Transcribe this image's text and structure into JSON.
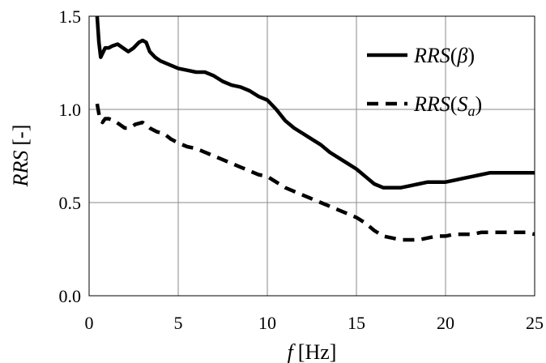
{
  "chart_data": {
    "type": "line",
    "xlabel": {
      "var": "f",
      "unit": "[Hz]"
    },
    "ylabel": {
      "var": "RRS",
      "unit": "[-]"
    },
    "xlim": [
      0,
      25
    ],
    "ylim": [
      0,
      1.5
    ],
    "xticks": [
      0,
      5,
      10,
      15,
      20,
      25
    ],
    "yticks": [
      0,
      0.5,
      1.0,
      1.5
    ],
    "xtick_labels": [
      "0",
      "5",
      "10",
      "15",
      "20",
      "25"
    ],
    "ytick_labels": [
      "0.0",
      "0.5",
      "1.0",
      "1.5"
    ],
    "grid": true,
    "legend_position": "top-right",
    "series": [
      {
        "name": "RRS(β)",
        "legend_base": "RRS",
        "legend_arg": "β",
        "legend_sub": "",
        "style": "solid",
        "color": "#000000",
        "x": [
          0.45,
          0.55,
          0.65,
          0.75,
          0.9,
          1.1,
          1.3,
          1.6,
          1.9,
          2.2,
          2.5,
          2.8,
          3.0,
          3.2,
          3.4,
          3.7,
          4.0,
          4.5,
          5.0,
          5.5,
          6.0,
          6.5,
          7.0,
          7.5,
          8.0,
          8.5,
          9.0,
          9.5,
          10.0,
          10.5,
          11.0,
          11.5,
          12.0,
          12.5,
          13.0,
          13.5,
          14.0,
          14.5,
          15.0,
          15.5,
          16.0,
          16.5,
          17.0,
          17.5,
          18.0,
          18.5,
          19.0,
          19.5,
          20.0,
          20.5,
          21.0,
          21.5,
          22.0,
          22.5,
          23.0,
          23.5,
          24.0,
          24.5,
          25.0
        ],
        "y": [
          1.5,
          1.36,
          1.28,
          1.3,
          1.33,
          1.33,
          1.34,
          1.35,
          1.33,
          1.31,
          1.33,
          1.36,
          1.37,
          1.36,
          1.31,
          1.28,
          1.26,
          1.24,
          1.22,
          1.21,
          1.2,
          1.2,
          1.18,
          1.15,
          1.13,
          1.12,
          1.1,
          1.07,
          1.05,
          1.0,
          0.94,
          0.9,
          0.87,
          0.84,
          0.81,
          0.77,
          0.74,
          0.71,
          0.68,
          0.64,
          0.6,
          0.58,
          0.58,
          0.58,
          0.59,
          0.6,
          0.61,
          0.61,
          0.61,
          0.62,
          0.63,
          0.64,
          0.65,
          0.66,
          0.66,
          0.66,
          0.66,
          0.66,
          0.66
        ]
      },
      {
        "name": "RRS(Sa)",
        "legend_base": "RRS",
        "legend_arg": "S",
        "legend_sub": "a",
        "style": "dashed",
        "color": "#000000",
        "x": [
          0.45,
          0.6,
          0.75,
          0.9,
          1.1,
          1.4,
          1.7,
          2.0,
          2.3,
          2.6,
          3.0,
          3.4,
          3.8,
          4.2,
          4.6,
          5.0,
          5.5,
          6.0,
          6.5,
          7.0,
          7.5,
          8.0,
          8.5,
          9.0,
          9.5,
          10.0,
          10.5,
          11.0,
          11.5,
          12.0,
          12.5,
          13.0,
          13.5,
          14.0,
          14.5,
          15.0,
          15.5,
          16.0,
          16.5,
          17.0,
          17.5,
          18.0,
          18.5,
          19.0,
          19.5,
          20.0,
          20.5,
          21.0,
          21.5,
          22.0,
          22.5,
          23.0,
          23.5,
          24.0,
          24.5,
          25.0
        ],
        "y": [
          1.03,
          0.95,
          0.93,
          0.95,
          0.95,
          0.94,
          0.92,
          0.9,
          0.9,
          0.92,
          0.93,
          0.9,
          0.88,
          0.87,
          0.84,
          0.82,
          0.8,
          0.79,
          0.77,
          0.75,
          0.73,
          0.71,
          0.69,
          0.67,
          0.65,
          0.64,
          0.61,
          0.58,
          0.56,
          0.54,
          0.52,
          0.5,
          0.48,
          0.46,
          0.44,
          0.42,
          0.39,
          0.35,
          0.32,
          0.31,
          0.3,
          0.3,
          0.3,
          0.31,
          0.32,
          0.32,
          0.33,
          0.33,
          0.33,
          0.34,
          0.34,
          0.34,
          0.34,
          0.34,
          0.34,
          0.33
        ]
      }
    ]
  }
}
